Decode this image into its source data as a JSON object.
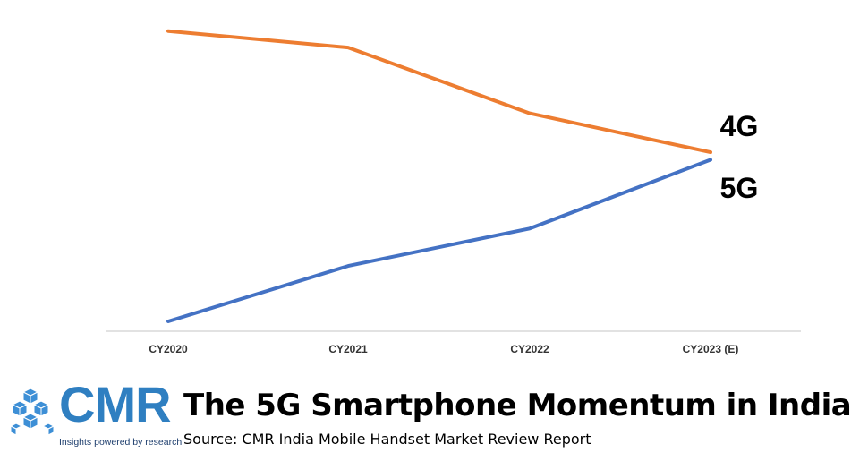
{
  "chart_data": {
    "type": "line",
    "categories": [
      "CY2020",
      "CY2021",
      "CY2022",
      "CY2023 (E)"
    ],
    "series": [
      {
        "name": "4G",
        "values": [
          100,
          94.5,
          72.5,
          59.5
        ],
        "color": "#ed7d31"
      },
      {
        "name": "5G",
        "values": [
          3,
          21.5,
          34,
          57
        ],
        "color": "#4472c4"
      }
    ],
    "ylim": [
      0,
      105
    ],
    "grid": false,
    "legend": "inline labels at line ends (right)",
    "title": "The 5G Smartphone Momentum in India",
    "subtitle": "Source: CMR India Mobile Handset Market Review Report",
    "xlabel": "",
    "ylabel": "",
    "axis_color": "#d9d9d9"
  },
  "branding": {
    "logo_text": "CMR",
    "tagline": "Insights powered by research",
    "logo_color": "#2f7fc1",
    "logo_icon": "cube-cluster-icon"
  }
}
